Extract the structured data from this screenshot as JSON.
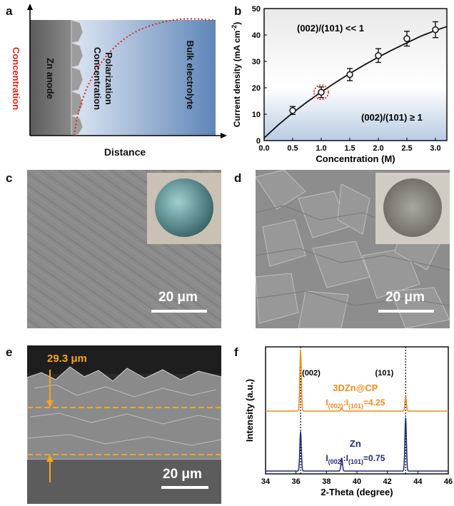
{
  "panels": {
    "a": {
      "letter": "a",
      "ylabel": "Concentration",
      "xlabel": "Distance",
      "zone_anode": "Zn anode",
      "zone_polar": "Concentration\nPolarization",
      "zone_bulk": "Bulk electrolyte",
      "colors": {
        "anode": "#6e6e6e",
        "bulk": "#6a8fbd",
        "curve": "#e2231a"
      }
    },
    "b": {
      "letter": "b"
    },
    "c": {
      "letter": "c",
      "scale": "20 μm"
    },
    "d": {
      "letter": "d",
      "scale": "20 μm"
    },
    "e": {
      "letter": "e",
      "scale": "20 μm",
      "thickness": "29.3 μm",
      "accent": "#f5a623"
    },
    "f": {
      "letter": "f"
    }
  },
  "chart_data": [
    {
      "type": "line",
      "panel": "b",
      "xlabel": "Concentration (M)",
      "ylabel_main": "Current density (mA cm",
      "ylabel_sup": "-2",
      "ylabel_close": ")",
      "xlim": [
        0,
        3.2
      ],
      "ylim": [
        0,
        50
      ],
      "xticks": [
        "0.0",
        "0.5",
        "1.0",
        "1.5",
        "2.0",
        "2.5",
        "3.0"
      ],
      "yticks": [
        "0",
        "10",
        "20",
        "30",
        "40",
        "50"
      ],
      "region_upper_label": "(002)/(101) << 1",
      "region_lower_label": "(002)/(101) ≥ 1",
      "threshold_y": 20,
      "highlight_x": 1.0,
      "series": [
        {
          "x": [
            0.5,
            1.0,
            1.5,
            2.0,
            2.5,
            3.0
          ],
          "y": [
            11.4,
            18.3,
            25.0,
            32.2,
            38.6,
            42.0
          ],
          "err": [
            1.5,
            2.0,
            2.3,
            2.6,
            2.8,
            3.0
          ]
        }
      ],
      "fit": {
        "x": [
          0,
          0.25,
          0.5,
          0.75,
          1.0,
          1.25,
          1.5,
          1.75,
          2.0,
          2.25,
          2.5,
          2.75,
          3.0,
          3.2
        ],
        "y": [
          1.0,
          6.0,
          10.5,
          14.6,
          18.4,
          22.0,
          25.4,
          28.6,
          31.6,
          34.4,
          37.0,
          39.6,
          41.7,
          43.2
        ]
      }
    },
    {
      "type": "line",
      "panel": "f",
      "xlabel": "2-Theta (degree)",
      "ylabel": "Intensity (a.u.)",
      "xlim": [
        34,
        46
      ],
      "xticks": [
        "34",
        "36",
        "38",
        "40",
        "42",
        "44",
        "46"
      ],
      "peak_label_1": "(002)",
      "peak_label_2": "(101)",
      "guide_lines_x": [
        36.3,
        43.2
      ],
      "series": [
        {
          "name": "3DZn@CP",
          "ratio_label": "I(002):I(101)=4.25",
          "ratio_pre": "I",
          "ratio_sub1": "(002)",
          "ratio_mid": ":I",
          "ratio_sub2": "(101)",
          "ratio_post": "=4.25",
          "color": "#f28a1c",
          "peaks": [
            {
              "x": 36.3,
              "h": 1.0
            },
            {
              "x": 39.0,
              "h": 0.05
            },
            {
              "x": 43.2,
              "h": 0.24
            }
          ]
        },
        {
          "name": "Zn",
          "ratio_label": "I(002):I(101)=0.75",
          "ratio_pre": "I",
          "ratio_sub1": "(002)",
          "ratio_mid": ":I",
          "ratio_sub2": "(101)",
          "ratio_post": "=0.75",
          "color": "#1f2a7a",
          "peaks": [
            {
              "x": 36.3,
              "h": 0.63
            },
            {
              "x": 39.0,
              "h": 0.21
            },
            {
              "x": 43.2,
              "h": 0.85
            }
          ]
        }
      ]
    }
  ]
}
